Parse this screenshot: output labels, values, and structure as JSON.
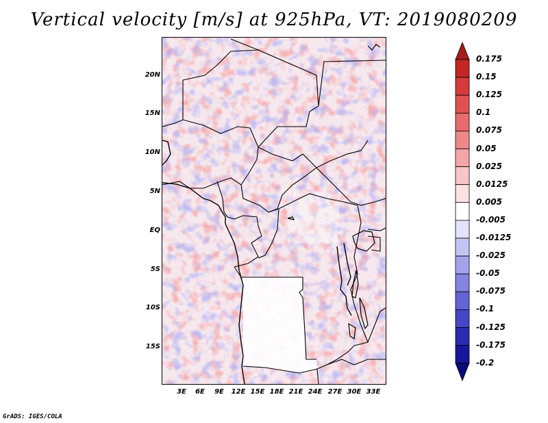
{
  "title": "Vertical velocity [m/s] at 925hPa, VT: 2019080209",
  "credit": "GrADS: IGES/COLA",
  "map": {
    "lat_labels": [
      "20N",
      "15N",
      "10N",
      "5N",
      "EQ",
      "5S",
      "10S",
      "15S"
    ],
    "lon_labels": [
      "3E",
      "6E",
      "9E",
      "12E",
      "15E",
      "18E",
      "21E",
      "24E",
      "27E",
      "30E",
      "33E"
    ],
    "field": "vertical-velocity-925hPa"
  },
  "colorbar": {
    "labels": [
      "0.175",
      "0.15",
      "0.125",
      "0.1",
      "0.075",
      "0.05",
      "0.025",
      "0.0125",
      "0.005",
      "-0.005",
      "-0.0125",
      "-0.025",
      "-0.05",
      "-0.075",
      "-0.1",
      "-0.125",
      "-0.175",
      "-0.2"
    ],
    "colors": [
      "#a51c1c",
      "#c42626",
      "#d63b3b",
      "#e05252",
      "#e86b6b",
      "#ee8888",
      "#f4a6a6",
      "#f8c6c6",
      "#fce2e2",
      "#ffffff",
      "#e2e2fb",
      "#c4c4f4",
      "#a3a3ec",
      "#8484e2",
      "#6464d6",
      "#4646c6",
      "#2a2ab2",
      "#16169a",
      "#0a0a7a"
    ]
  }
}
